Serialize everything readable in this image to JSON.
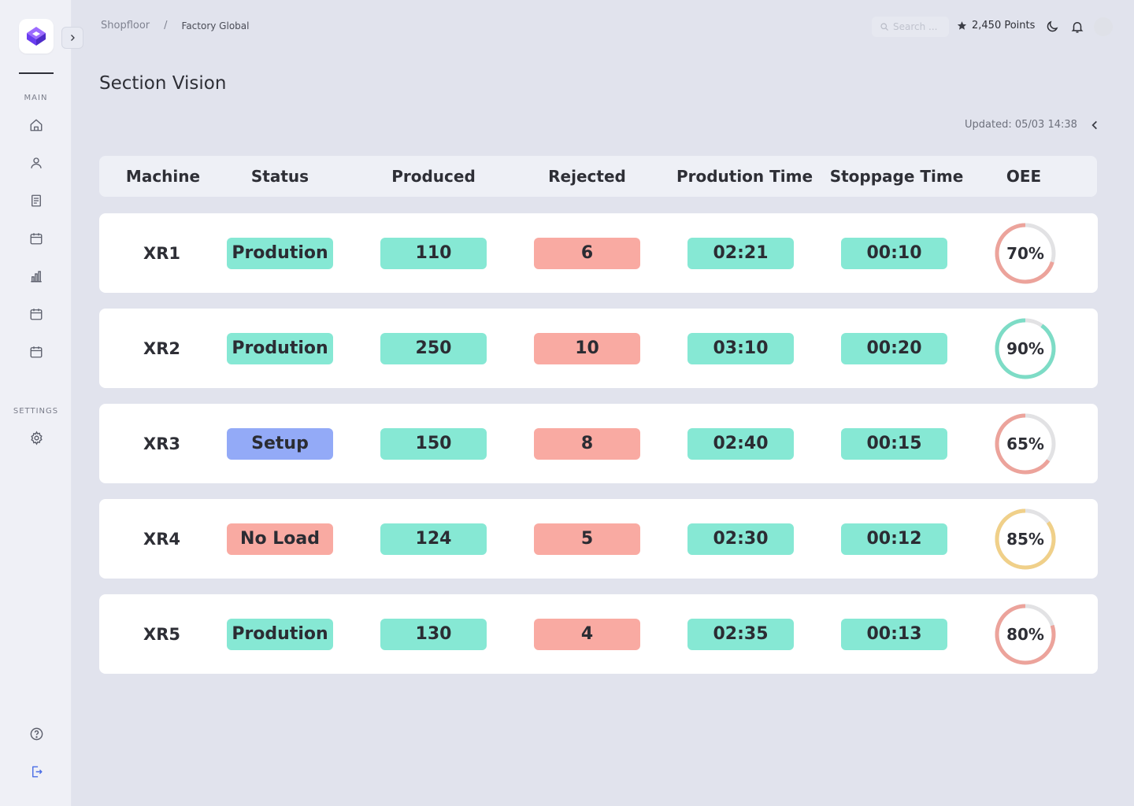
{
  "sidebar": {
    "main_label": "MAIN",
    "settings_label": "SETTINGS",
    "nav_icons": [
      "home-icon",
      "user-icon",
      "document-icon",
      "calendar-icon",
      "bar-chart-icon",
      "calendar-icon",
      "calendar-icon"
    ],
    "settings_icons": [
      "gear-icon"
    ],
    "bottom_icons": [
      "help-icon",
      "logout-icon"
    ]
  },
  "header": {
    "breadcrumb": {
      "root": "Shopfloor",
      "separator": "/",
      "current": "Factory Global"
    },
    "search_placeholder": "Search ...",
    "points": "2,450 Points"
  },
  "page": {
    "title": "Section Vision",
    "updated": "Updated: 05/03 14:38"
  },
  "table": {
    "columns": [
      "Machine",
      "Status",
      "Produced",
      "Rejected",
      "Prodution Time",
      "Stoppage Time",
      "OEE"
    ],
    "rows": [
      {
        "machine": "XR1",
        "status": "Prodution",
        "status_color": "#86e8d4",
        "produced": "110",
        "rejected": "6",
        "production_time": "02:21",
        "stoppage_time": "00:10",
        "oee": 70,
        "oee_label": "70%",
        "oee_color": "#eca39b"
      },
      {
        "machine": "XR2",
        "status": "Prodution",
        "status_color": "#86e8d4",
        "produced": "250",
        "rejected": "10",
        "production_time": "03:10",
        "stoppage_time": "00:20",
        "oee": 90,
        "oee_label": "90%",
        "oee_color": "#7ddcc6"
      },
      {
        "machine": "XR3",
        "status": "Setup",
        "status_color": "#93aaf7",
        "produced": "150",
        "rejected": "8",
        "production_time": "02:40",
        "stoppage_time": "00:15",
        "oee": 65,
        "oee_label": "65%",
        "oee_color": "#eca39b"
      },
      {
        "machine": "XR4",
        "status": "No Load",
        "status_color": "#f9aaa2",
        "produced": "124",
        "rejected": "5",
        "production_time": "02:30",
        "stoppage_time": "00:12",
        "oee": 85,
        "oee_label": "85%",
        "oee_color": "#f0d089"
      },
      {
        "machine": "XR5",
        "status": "Prodution",
        "status_color": "#86e8d4",
        "produced": "130",
        "rejected": "4",
        "production_time": "02:35",
        "stoppage_time": "00:13",
        "oee": 80,
        "oee_label": "80%",
        "oee_color": "#eca39b"
      }
    ]
  },
  "colors": {
    "brand": "#7b4dff",
    "teal": "#86e8d4",
    "salmon": "#f9aaa2",
    "blue": "#93aaf7",
    "gauge_track": "#e2e2e4"
  }
}
